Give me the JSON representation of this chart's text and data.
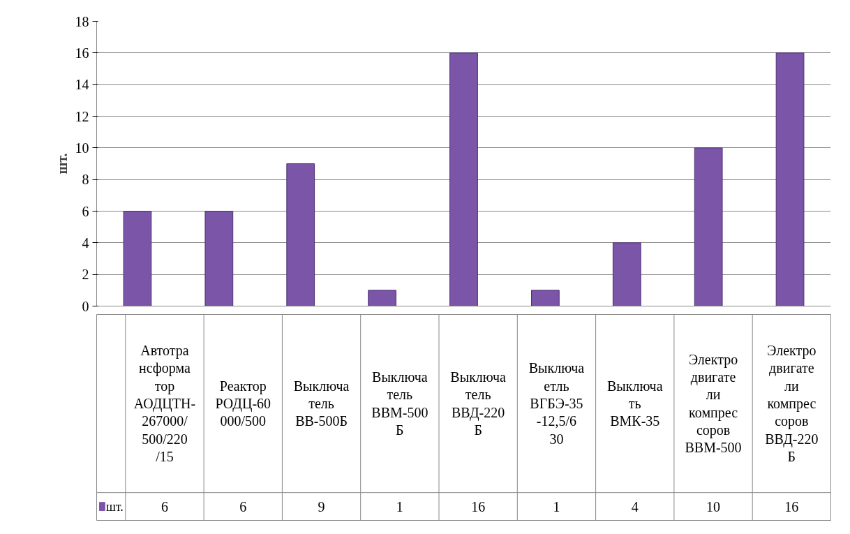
{
  "chart_data": {
    "type": "bar",
    "ylabel": "шт.",
    "categories": [
      "Автотрансформатор АОДЦТН-267000/500/220/15",
      "Реактор РОДЦ-60000/500",
      "Выключатель ВВ-500Б",
      "Выключатель ВВМ-500Б",
      "Выключатель ВВД-220Б",
      "Выключаетль ВГБЭ-35-12,5/630",
      "Выключать ВМК-35",
      "Электродвигатели компрессоров ВВМ-500",
      "Электродвигатели компрессоров ВВД-220Б"
    ],
    "series": [
      {
        "name": "шт.",
        "color": "#7b55a8",
        "values": [
          6,
          6,
          9,
          1,
          16,
          1,
          4,
          10,
          16
        ]
      }
    ],
    "ylim": [
      0,
      18
    ],
    "yticks": [
      0,
      2,
      4,
      6,
      8,
      10,
      12,
      14,
      16,
      18
    ],
    "grid": "y",
    "legend": "bottom",
    "data_labels": true
  }
}
